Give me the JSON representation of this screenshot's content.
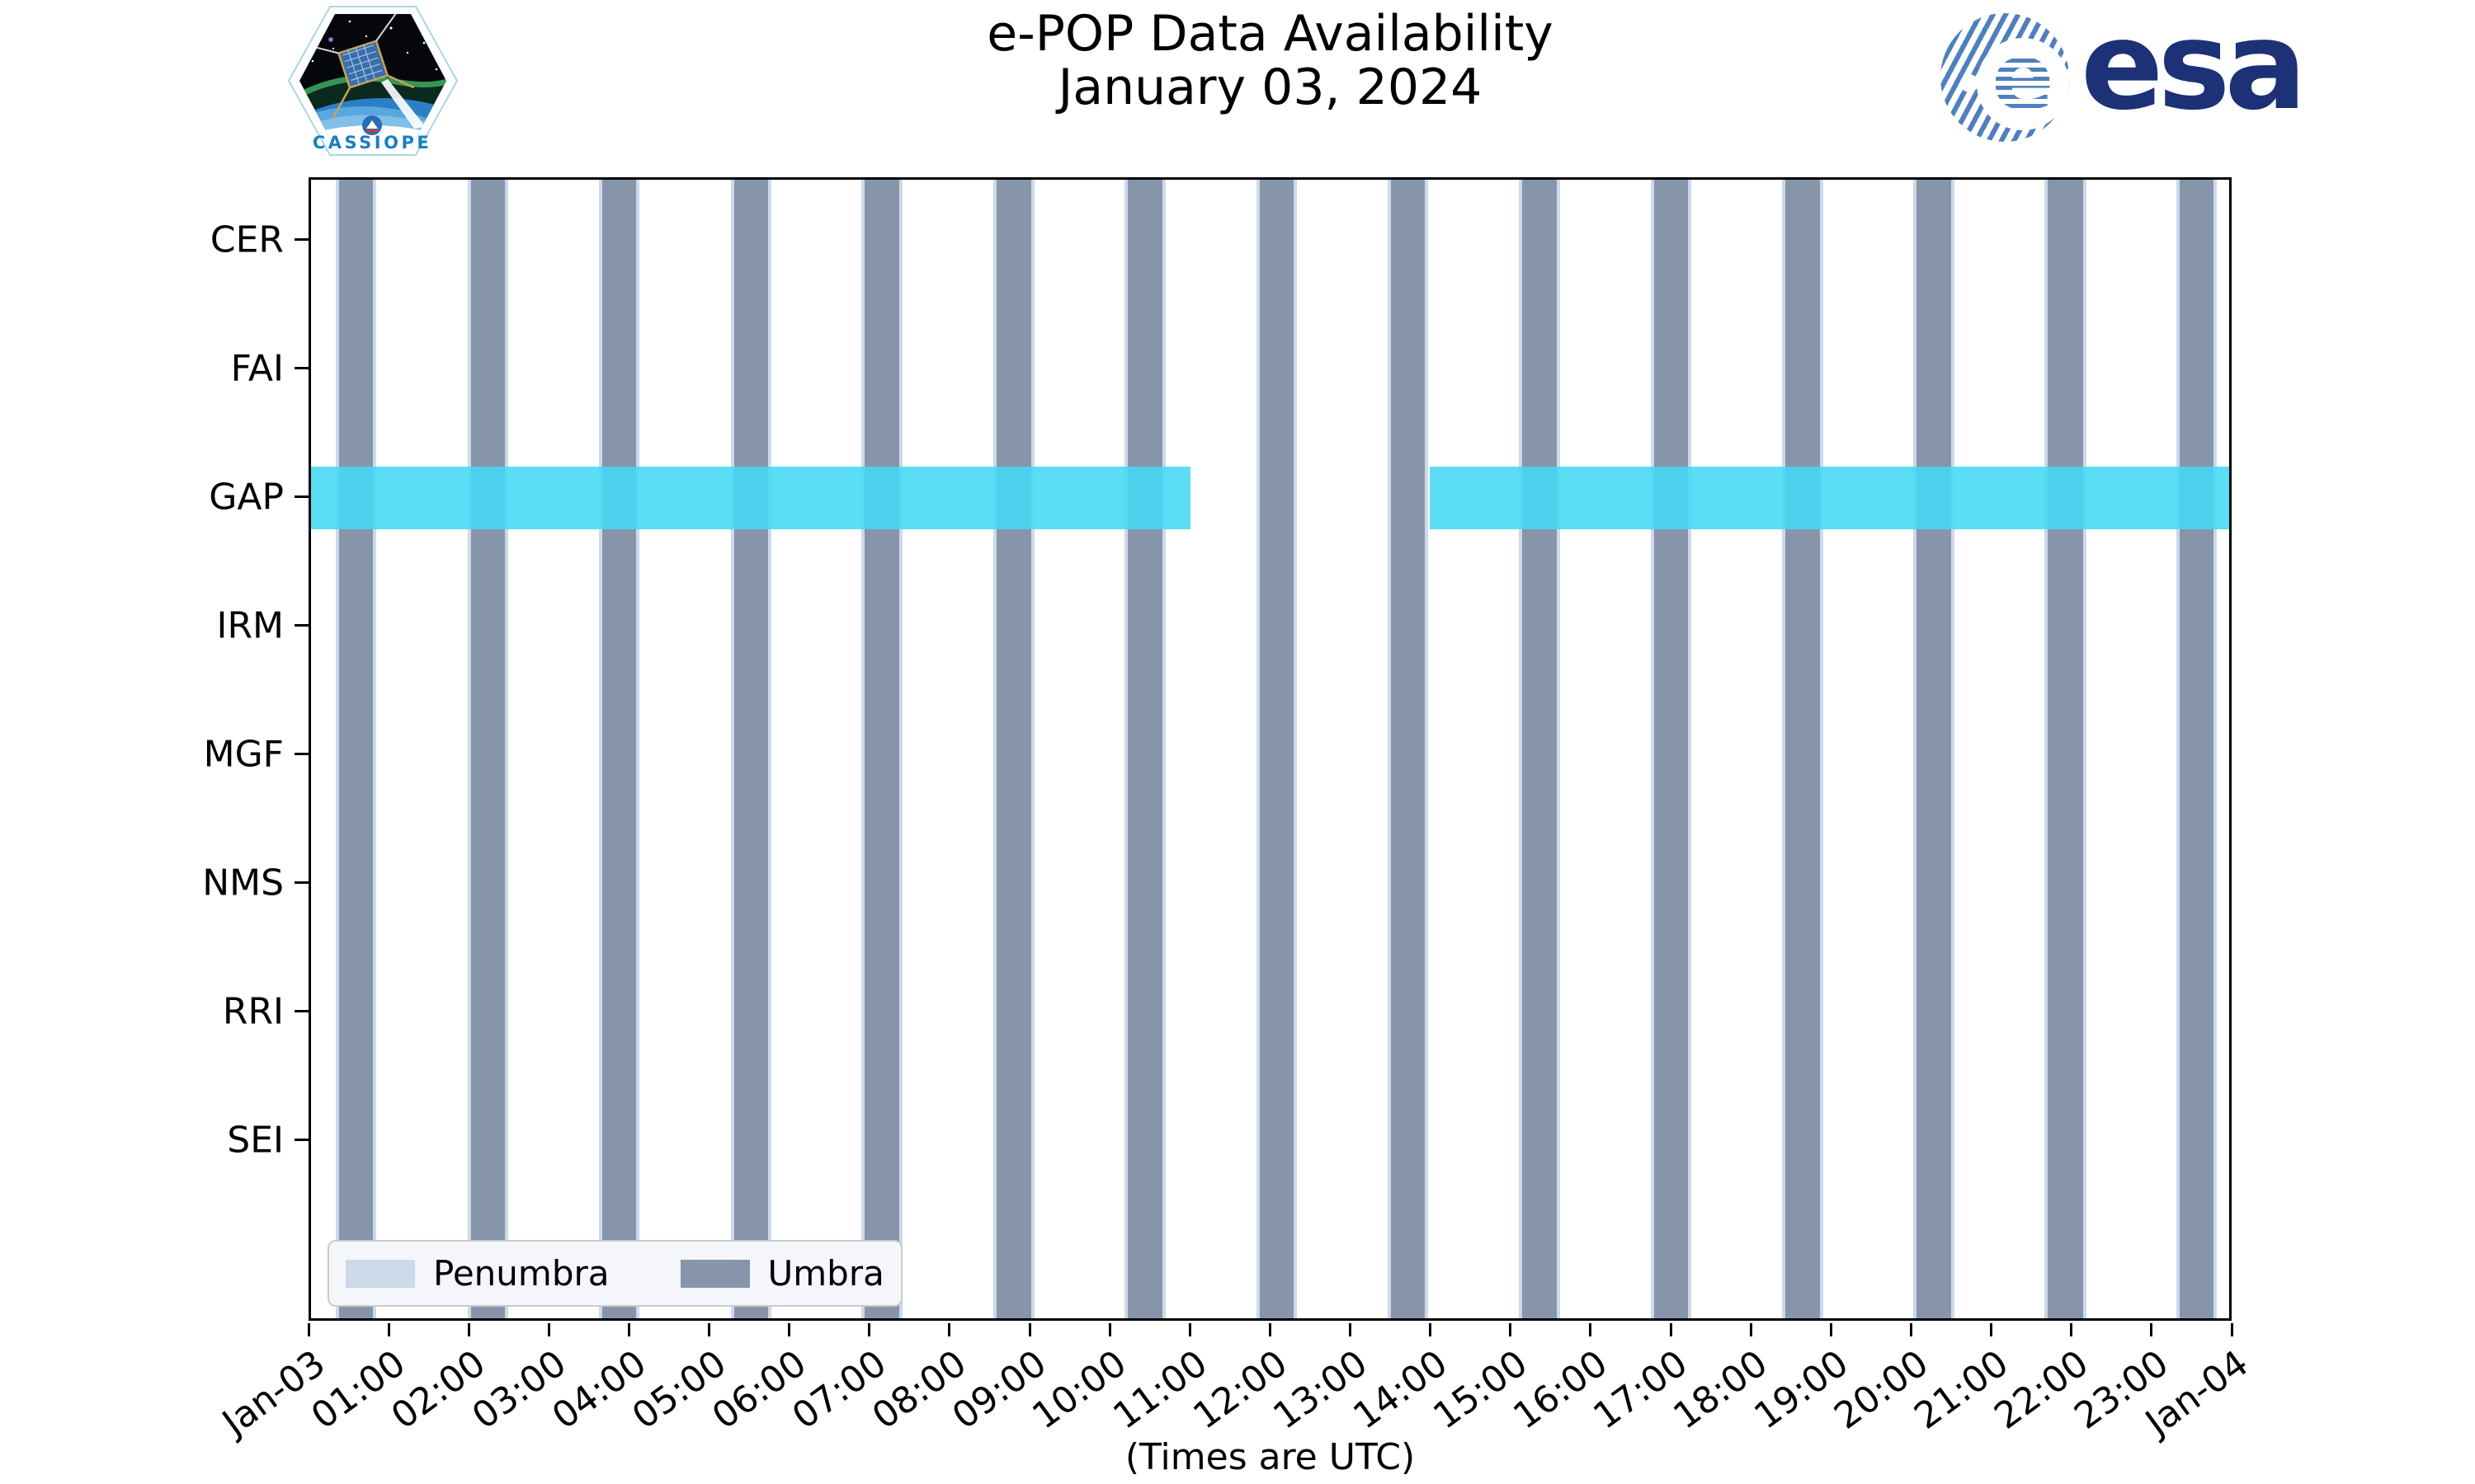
{
  "header": {
    "title_line1": "e-POP Data Availability",
    "title_line2": "January 03, 2024",
    "cassiope_label": "CASSIOPE",
    "esa_text": "esa"
  },
  "xlabel": "(Times are UTC)",
  "legend": {
    "items": [
      {
        "label": "Penumbra",
        "color": "#ccd9e8"
      },
      {
        "label": "Umbra",
        "color": "#8695a9"
      }
    ]
  },
  "colors": {
    "umbra": "#8695a9",
    "penumbra": "#ccd9e8",
    "availability": "#45d8f5",
    "availability_alpha": 0.88,
    "axis": "#000000",
    "esa_navy": "#1d3176",
    "esa_stripe": "#4f80bd",
    "cassiope_blue": "#1a7fc0"
  },
  "chart_data": {
    "type": "timeline",
    "title": "e-POP Data Availability",
    "subtitle": "January 03, 2024",
    "rows": [
      "CER",
      "FAI",
      "GAP",
      "IRM",
      "MGF",
      "NMS",
      "RRI",
      "SEI"
    ],
    "x_axis": {
      "unit": "hours UTC",
      "range_hours": [
        0,
        24
      ],
      "tick_labels": [
        "Jan-03",
        "01:00",
        "02:00",
        "03:00",
        "04:00",
        "05:00",
        "06:00",
        "07:00",
        "08:00",
        "09:00",
        "10:00",
        "11:00",
        "12:00",
        "13:00",
        "14:00",
        "15:00",
        "16:00",
        "17:00",
        "18:00",
        "19:00",
        "20:00",
        "21:00",
        "22:00",
        "23:00",
        "Jan-04"
      ],
      "xlabel": "(Times are UTC)"
    },
    "availability_hours": {
      "CER": [],
      "FAI": [],
      "GAP": [
        [
          0.0,
          11.0
        ],
        [
          14.0,
          24.0
        ]
      ],
      "IRM": [],
      "MGF": [],
      "NMS": [],
      "RRI": [],
      "SEI": []
    },
    "umbra_intervals_hours": [
      [
        0.36,
        0.77
      ],
      [
        2.01,
        2.42
      ],
      [
        3.65,
        4.06
      ],
      [
        5.3,
        5.71
      ],
      [
        6.94,
        7.35
      ],
      [
        8.59,
        9.0
      ],
      [
        10.23,
        10.64
      ],
      [
        11.88,
        12.29
      ],
      [
        13.52,
        13.93
      ],
      [
        15.16,
        15.58
      ],
      [
        16.81,
        17.22
      ],
      [
        18.45,
        18.87
      ],
      [
        20.1,
        20.51
      ],
      [
        21.74,
        22.16
      ],
      [
        23.39,
        23.8
      ]
    ],
    "penumbra_margin_hours": 0.05,
    "legend_position": "lower left",
    "grid": false
  }
}
